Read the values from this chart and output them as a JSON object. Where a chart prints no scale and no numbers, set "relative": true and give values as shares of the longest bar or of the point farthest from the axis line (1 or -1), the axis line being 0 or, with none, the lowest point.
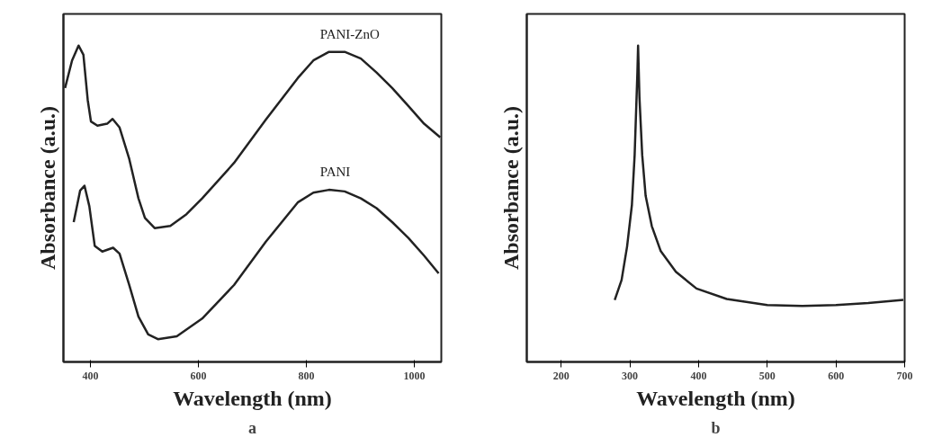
{
  "chart_data": [
    {
      "type": "line",
      "relative": true,
      "xlabel": "Wavelength (nm)",
      "ylabel": "Absorbance (a.u.)",
      "xlim": [
        350,
        1050
      ],
      "xticks": [
        400,
        600,
        800,
        1000
      ],
      "grid": false,
      "annotations": [
        "a"
      ],
      "series": [
        {
          "name": "PANI-ZnO",
          "color": "#222222",
          "x": [
            353,
            366,
            378,
            387,
            395,
            401,
            413,
            431,
            441,
            454,
            472,
            489,
            501,
            519,
            548,
            578,
            607,
            666,
            725,
            784,
            813,
            842,
            871,
            901,
            930,
            959,
            989,
            1018,
            1048
          ],
          "values": [
            0.866,
            0.953,
            1.0,
            0.971,
            0.828,
            0.76,
            0.747,
            0.753,
            0.768,
            0.741,
            0.641,
            0.517,
            0.455,
            0.423,
            0.43,
            0.467,
            0.517,
            0.629,
            0.766,
            0.897,
            0.953,
            0.98,
            0.98,
            0.959,
            0.915,
            0.866,
            0.809,
            0.753,
            0.71
          ]
        },
        {
          "name": "PANI",
          "color": "#222222",
          "x": [
            369,
            381,
            389,
            398,
            408,
            422,
            442,
            454,
            472,
            489,
            507,
            525,
            560,
            607,
            666,
            725,
            784,
            813,
            842,
            871,
            901,
            930,
            959,
            989,
            1018,
            1045
          ],
          "values": [
            0.442,
            0.542,
            0.557,
            0.492,
            0.367,
            0.349,
            0.361,
            0.342,
            0.243,
            0.143,
            0.087,
            0.072,
            0.081,
            0.137,
            0.243,
            0.38,
            0.504,
            0.535,
            0.544,
            0.539,
            0.517,
            0.486,
            0.442,
            0.392,
            0.336,
            0.28
          ]
        }
      ]
    },
    {
      "type": "line",
      "relative": true,
      "xlabel": "Wavelength (nm)",
      "ylabel": "Absorbance (a.u.)",
      "xlim": [
        150,
        700
      ],
      "xticks": [
        200,
        300,
        400,
        500,
        600,
        700
      ],
      "grid": false,
      "annotations": [
        "b"
      ],
      "series": [
        {
          "color": "#222222",
          "x": [
            278,
            288,
            296,
            303,
            307,
            311,
            312,
            314,
            318,
            323,
            332,
            345,
            367,
            397,
            441,
            500,
            551,
            600,
            647,
            698
          ],
          "values": [
            0.196,
            0.259,
            0.365,
            0.496,
            0.654,
            0.915,
            1.0,
            0.836,
            0.654,
            0.525,
            0.429,
            0.35,
            0.285,
            0.232,
            0.199,
            0.18,
            0.177,
            0.18,
            0.186,
            0.196
          ]
        }
      ]
    }
  ]
}
